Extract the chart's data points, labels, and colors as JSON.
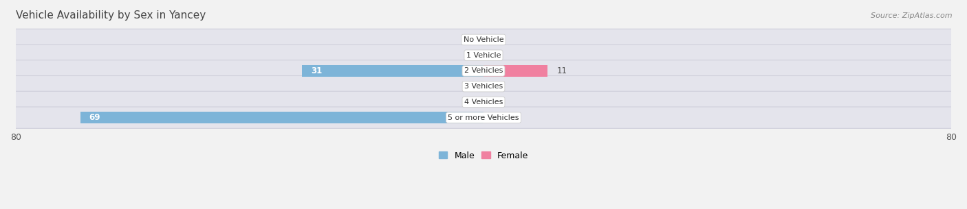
{
  "title": "Vehicle Availability by Sex in Yancey",
  "source": "Source: ZipAtlas.com",
  "categories": [
    "No Vehicle",
    "1 Vehicle",
    "2 Vehicles",
    "3 Vehicles",
    "4 Vehicles",
    "5 or more Vehicles"
  ],
  "male_values": [
    0,
    0,
    31,
    0,
    0,
    69
  ],
  "female_values": [
    0,
    0,
    11,
    0,
    0,
    0
  ],
  "male_color": "#7db4d8",
  "female_color": "#f080a0",
  "male_color_light": "#aed0e8",
  "female_color_light": "#f5adc0",
  "male_label": "Male",
  "female_label": "Female",
  "xlim": [
    -80,
    80
  ],
  "xtick_left": -80,
  "xtick_right": 80,
  "bg_color": "#f2f2f2",
  "row_bg_color": "#e4e4ec",
  "row_bg_edge_color": "#d0d0dc",
  "title_fontsize": 11,
  "source_fontsize": 8,
  "axis_fontsize": 9,
  "label_fontsize": 8.5,
  "cat_fontsize": 8
}
